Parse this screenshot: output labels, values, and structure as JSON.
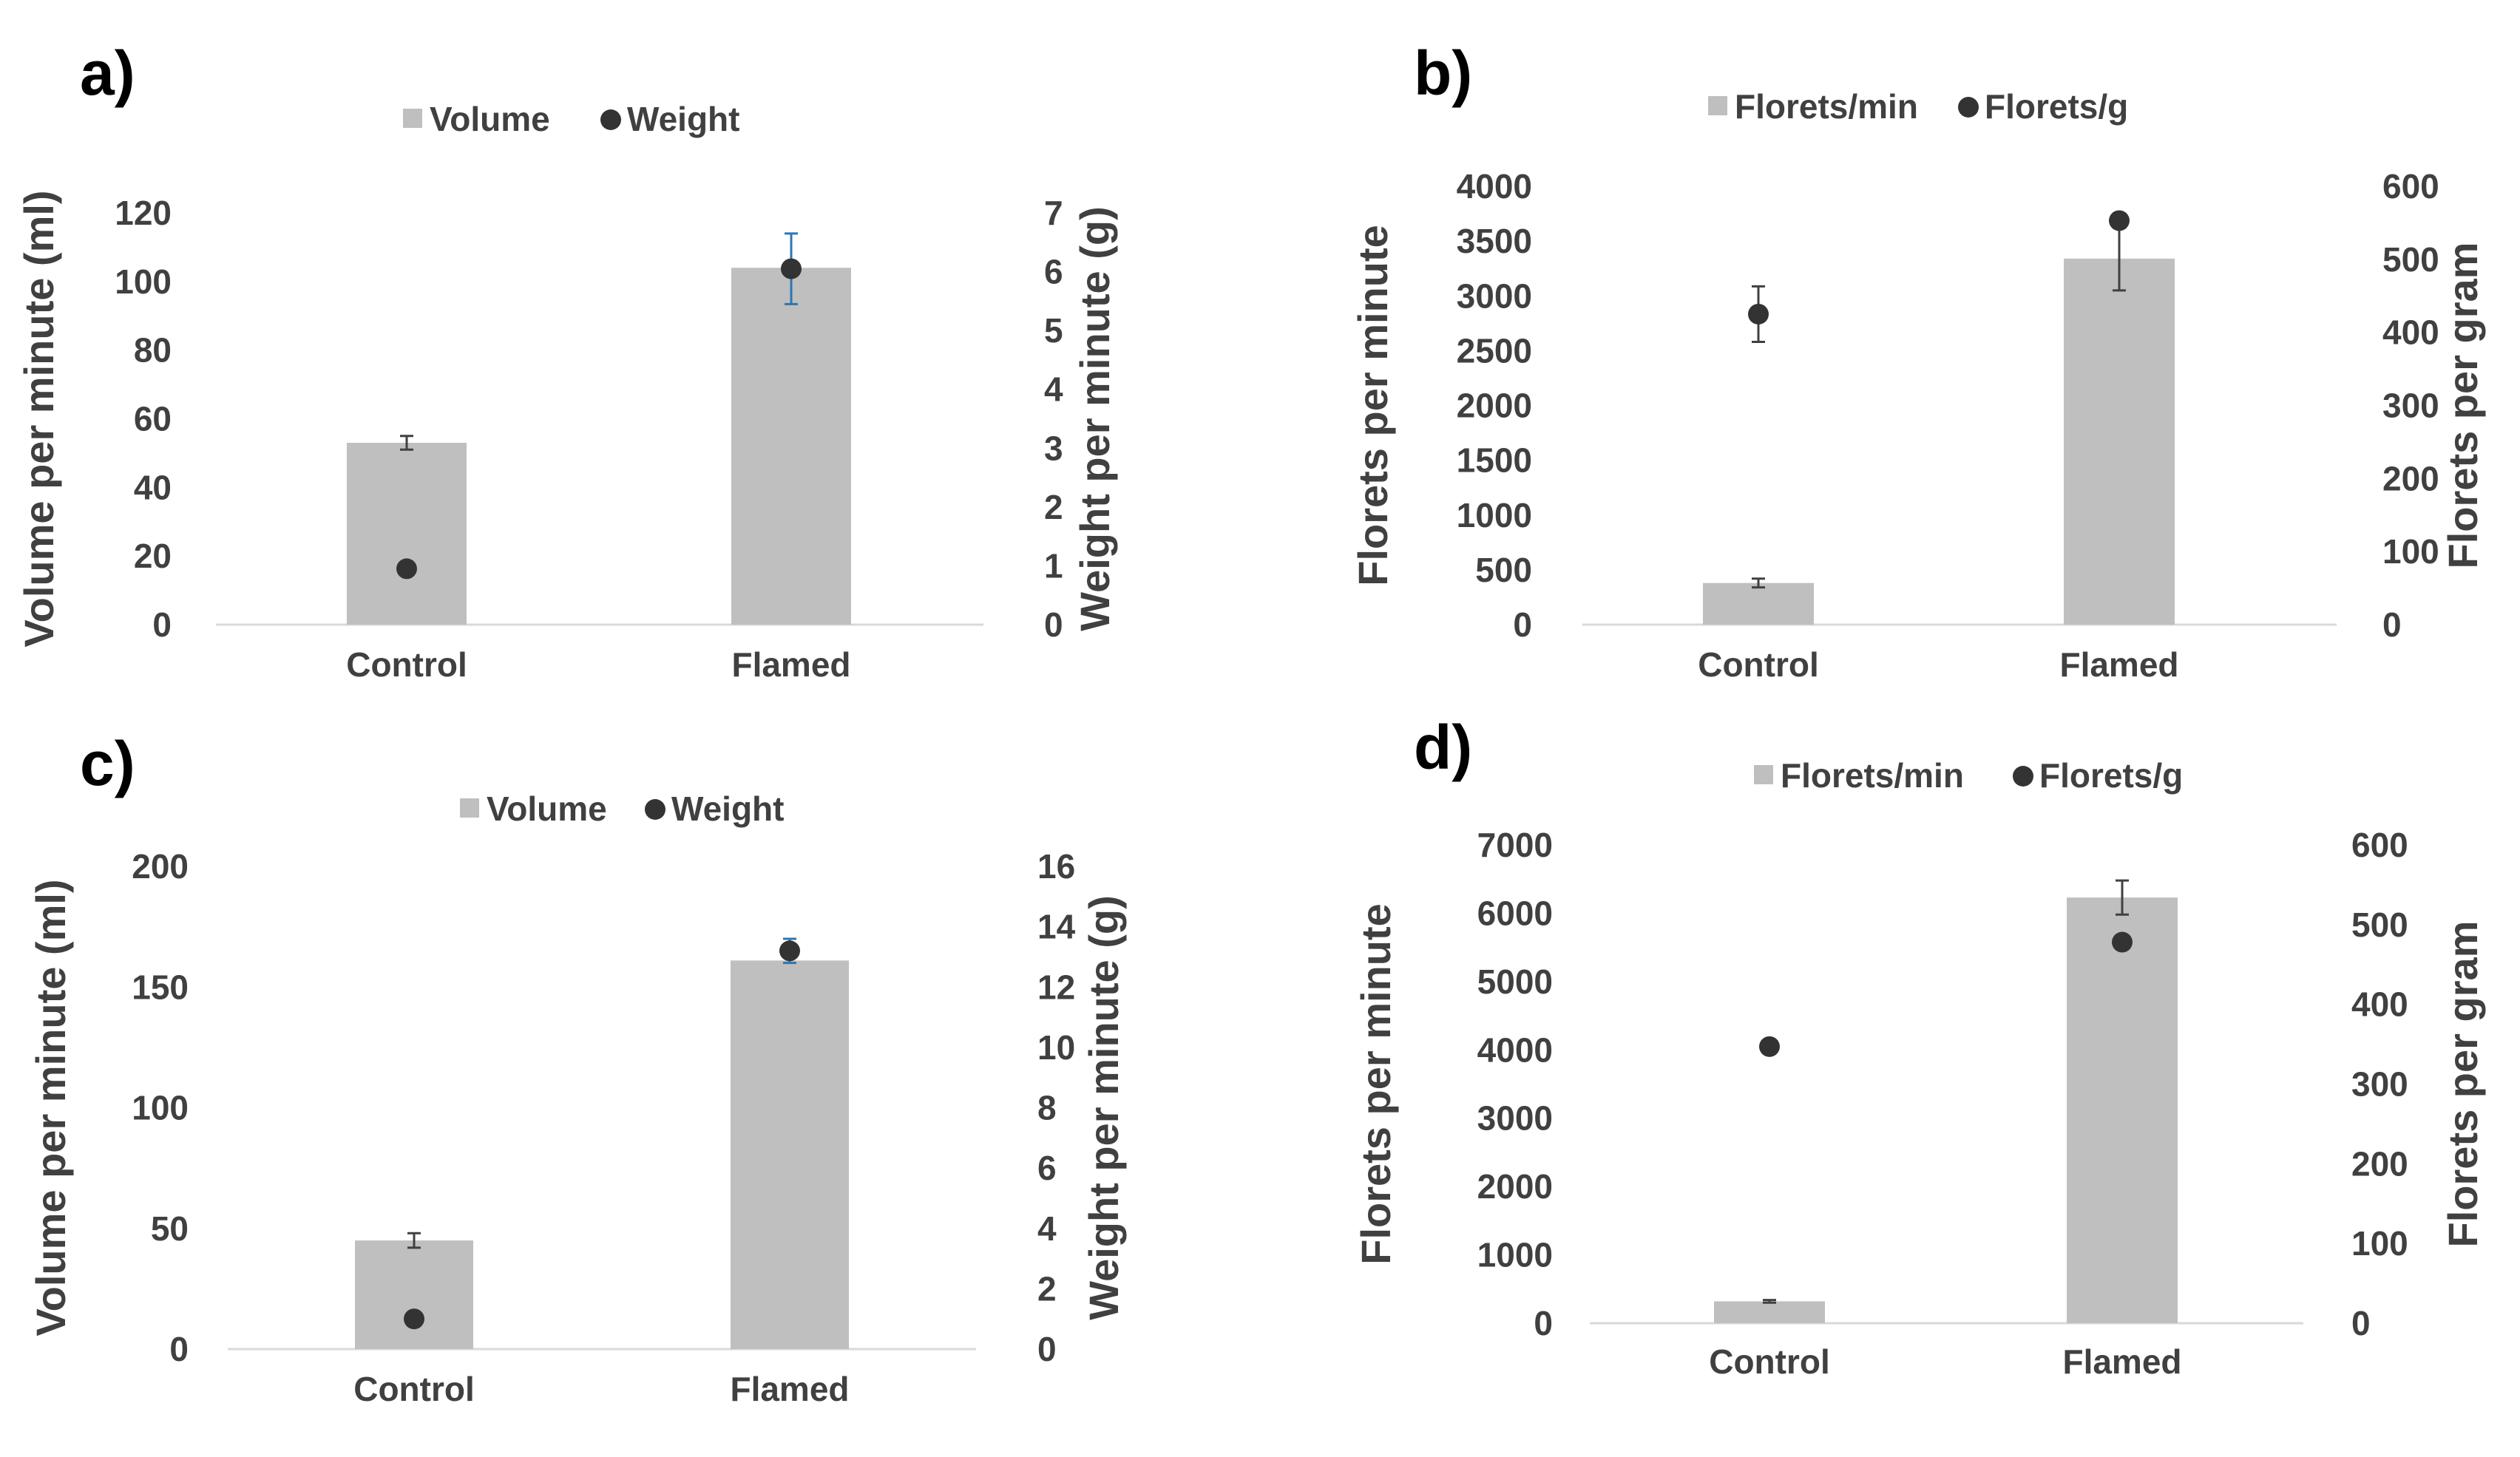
{
  "chart_data": [
    {
      "panel": "a)",
      "type": "bar",
      "categories": [
        "Control",
        "Flamed"
      ],
      "legend": [
        "Volume",
        "Weight"
      ],
      "ylabel": "Volume per minute (ml)",
      "y2label": "Weight per minute (g)",
      "ylim": [
        0,
        120
      ],
      "y2lim": [
        0,
        7
      ],
      "yticks": [
        "0",
        "20",
        "40",
        "60",
        "80",
        "100",
        "120"
      ],
      "y2ticks": [
        "0",
        "1",
        "2",
        "3",
        "4",
        "5",
        "6",
        "7"
      ],
      "bars": {
        "name": "Volume",
        "values": [
          53,
          104
        ],
        "errors": [
          2,
          0
        ]
      },
      "points": {
        "name": "Weight",
        "values": [
          0.95,
          6.05
        ],
        "errors": [
          0,
          0.6
        ]
      }
    },
    {
      "panel": "b)",
      "type": "bar",
      "categories": [
        "Control",
        "Flamed"
      ],
      "legend": [
        "Florets/min",
        "Florets/g"
      ],
      "ylabel": "Florets per minute",
      "y2label": "Florets per gram",
      "ylim": [
        0,
        4000
      ],
      "y2lim": [
        0,
        600
      ],
      "yticks": [
        "0",
        "500",
        "1000",
        "1500",
        "2000",
        "2500",
        "3000",
        "3500",
        "4000"
      ],
      "y2ticks": [
        "0",
        "100",
        "200",
        "300",
        "400",
        "500",
        "600"
      ],
      "bars": {
        "name": "Florets/min",
        "values": [
          380,
          3340
        ],
        "errors": [
          40,
          290
        ]
      },
      "points": {
        "name": "Florets/g",
        "values": [
          425,
          553
        ],
        "errors": [
          38,
          0
        ]
      }
    },
    {
      "panel": "c)",
      "type": "bar",
      "categories": [
        "Control",
        "Flamed"
      ],
      "legend": [
        "Volume",
        "Weight"
      ],
      "ylabel": "Volume per minute (ml)",
      "y2label": "Weight per minute (g)",
      "ylim": [
        0,
        200
      ],
      "y2lim": [
        0,
        16
      ],
      "yticks": [
        "0",
        "50",
        "100",
        "150",
        "200"
      ],
      "y2ticks": [
        "0",
        "2",
        "4",
        "6",
        "8",
        "10",
        "12",
        "14",
        "16"
      ],
      "bars": {
        "name": "Volume",
        "values": [
          45,
          161
        ],
        "errors": [
          3,
          0
        ]
      },
      "points": {
        "name": "Weight",
        "values": [
          1,
          13.2
        ],
        "errors": [
          0,
          0.4
        ]
      }
    },
    {
      "panel": "d)",
      "type": "bar",
      "categories": [
        "Control",
        "Flamed"
      ],
      "legend": [
        "Florets/min",
        "Florets/g"
      ],
      "ylabel": "Florets per minute",
      "y2label": "Florets per gram",
      "ylim": [
        0,
        7000
      ],
      "y2lim": [
        0,
        600
      ],
      "yticks": [
        "0",
        "1000",
        "2000",
        "3000",
        "4000",
        "5000",
        "6000",
        "7000"
      ],
      "y2ticks": [
        "0",
        "100",
        "200",
        "300",
        "400",
        "500",
        "600"
      ],
      "bars": {
        "name": "Florets/min",
        "values": [
          320,
          6230
        ],
        "errors": [
          20,
          250
        ]
      },
      "points": {
        "name": "Florets/g",
        "values": [
          347,
          478
        ],
        "errors": [
          5,
          0
        ]
      }
    }
  ],
  "colors": {
    "bar": "#bfbfbf",
    "point": "#333333",
    "axis": "#d9d9d9",
    "error_blue": "#2e75b6",
    "error_dark": "#404040",
    "text": "#404040"
  }
}
